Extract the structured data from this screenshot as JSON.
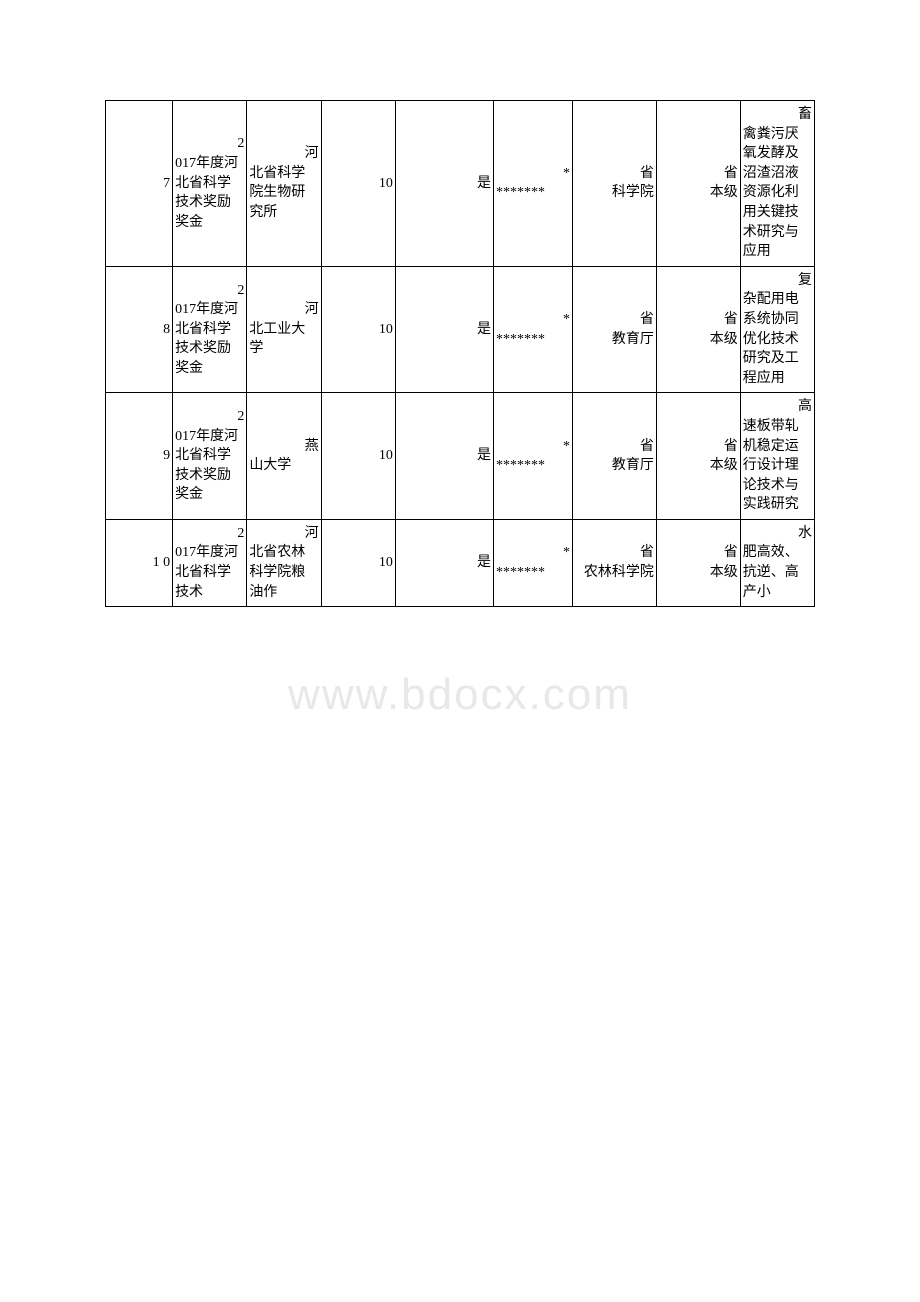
{
  "watermark": "www.bdocx.com",
  "table": {
    "columns": [
      {
        "width": 56,
        "align": "right"
      },
      {
        "width": 62,
        "align": "left"
      },
      {
        "width": 62,
        "align": "left"
      },
      {
        "width": 62,
        "align": "right"
      },
      {
        "width": 82,
        "align": "right"
      },
      {
        "width": 66,
        "align": "left"
      },
      {
        "width": 70,
        "align": "right"
      },
      {
        "width": 70,
        "align": "right"
      },
      {
        "width": 62,
        "align": "left"
      }
    ],
    "rows": [
      {
        "idx": "7",
        "award": {
          "first": "2",
          "rest": "017年度河北省科学技术奖励奖金"
        },
        "unit": {
          "first": "河",
          "rest": "北省科学院生物研究所"
        },
        "amount": {
          "first": "1",
          "rest": "0"
        },
        "confirm": "是",
        "stars": {
          "first": "*",
          "rest": "*******"
        },
        "dept": {
          "first": "省",
          "rest": "科学院"
        },
        "level": {
          "first": "省",
          "rest": "本级"
        },
        "project": {
          "first": "畜",
          "rest": "禽粪污厌氧发酵及沼渣沼液资源化利用关键技术研究与应用"
        }
      },
      {
        "idx": "8",
        "award": {
          "first": "2",
          "rest": "017年度河北省科学技术奖励奖金"
        },
        "unit": {
          "first": "河",
          "rest": "北工业大学"
        },
        "amount": {
          "first": "1",
          "rest": "0"
        },
        "confirm": "是",
        "stars": {
          "first": "*",
          "rest": "*******"
        },
        "dept": {
          "first": "省",
          "rest": "教育厅"
        },
        "level": {
          "first": "省",
          "rest": "本级"
        },
        "project": {
          "first": "复",
          "rest": "杂配用电系统协同优化技术研究及工程应用"
        }
      },
      {
        "idx": "9",
        "award": {
          "first": "2",
          "rest": "017年度河北省科学技术奖励奖金"
        },
        "unit": {
          "first": "燕",
          "rest": "山大学"
        },
        "amount": {
          "first": "1",
          "rest": "0"
        },
        "confirm": "是",
        "stars": {
          "first": "*",
          "rest": "*******"
        },
        "dept": {
          "first": "省",
          "rest": "教育厅"
        },
        "level": {
          "first": "省",
          "rest": "本级"
        },
        "project": {
          "first": "高",
          "rest": "速板带轧机稳定运行设计理论技术与实践研究"
        }
      },
      {
        "idx": "1\n0",
        "award": {
          "first": "2",
          "rest": "017年度河北省科学技术"
        },
        "unit": {
          "first": "河",
          "rest": "北省农林科学院粮油作"
        },
        "amount": {
          "first": "1",
          "rest": "0"
        },
        "confirm": "是",
        "stars": {
          "first": "*",
          "rest": "*******"
        },
        "dept": {
          "first": "省",
          "rest": "农林科学院"
        },
        "level": {
          "first": "省",
          "rest": "本级"
        },
        "project": {
          "first": "水",
          "rest": "肥高效、抗逆、高产小"
        }
      }
    ],
    "border_color": "#000000",
    "font_size": 14,
    "background_color": "#ffffff"
  }
}
